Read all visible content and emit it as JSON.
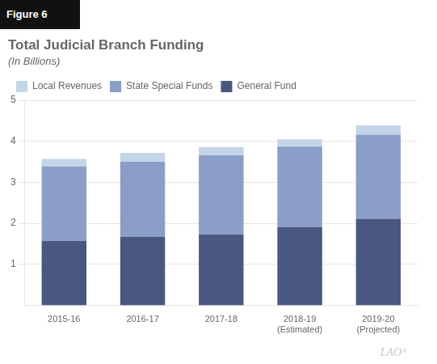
{
  "chart_data": {
    "type": "bar",
    "title": "Total Judicial Branch Funding",
    "subtitle": "(In Billions)",
    "annotations": [
      "Figure 6",
      "LAOᴬ"
    ],
    "categories": [
      "2015-16",
      "2016-17",
      "2017-18",
      "2018-19\n(Estimated)",
      "2019-20\n(Projected)"
    ],
    "series": [
      {
        "name": "General Fund",
        "color": "#4a5880",
        "values": [
          1.57,
          1.68,
          1.73,
          1.91,
          2.11
        ]
      },
      {
        "name": "State Special Funds",
        "color": "#8b9ec8",
        "values": [
          1.82,
          1.82,
          1.93,
          1.96,
          2.05
        ]
      },
      {
        "name": "Local Revenues",
        "color": "#c5d5e8",
        "values": [
          0.18,
          0.22,
          0.2,
          0.18,
          0.23
        ]
      }
    ],
    "stacked": true,
    "ylim": [
      0,
      5
    ],
    "yticks": [
      1,
      2,
      3,
      4,
      5
    ],
    "grid": true,
    "legend": "upper left"
  }
}
